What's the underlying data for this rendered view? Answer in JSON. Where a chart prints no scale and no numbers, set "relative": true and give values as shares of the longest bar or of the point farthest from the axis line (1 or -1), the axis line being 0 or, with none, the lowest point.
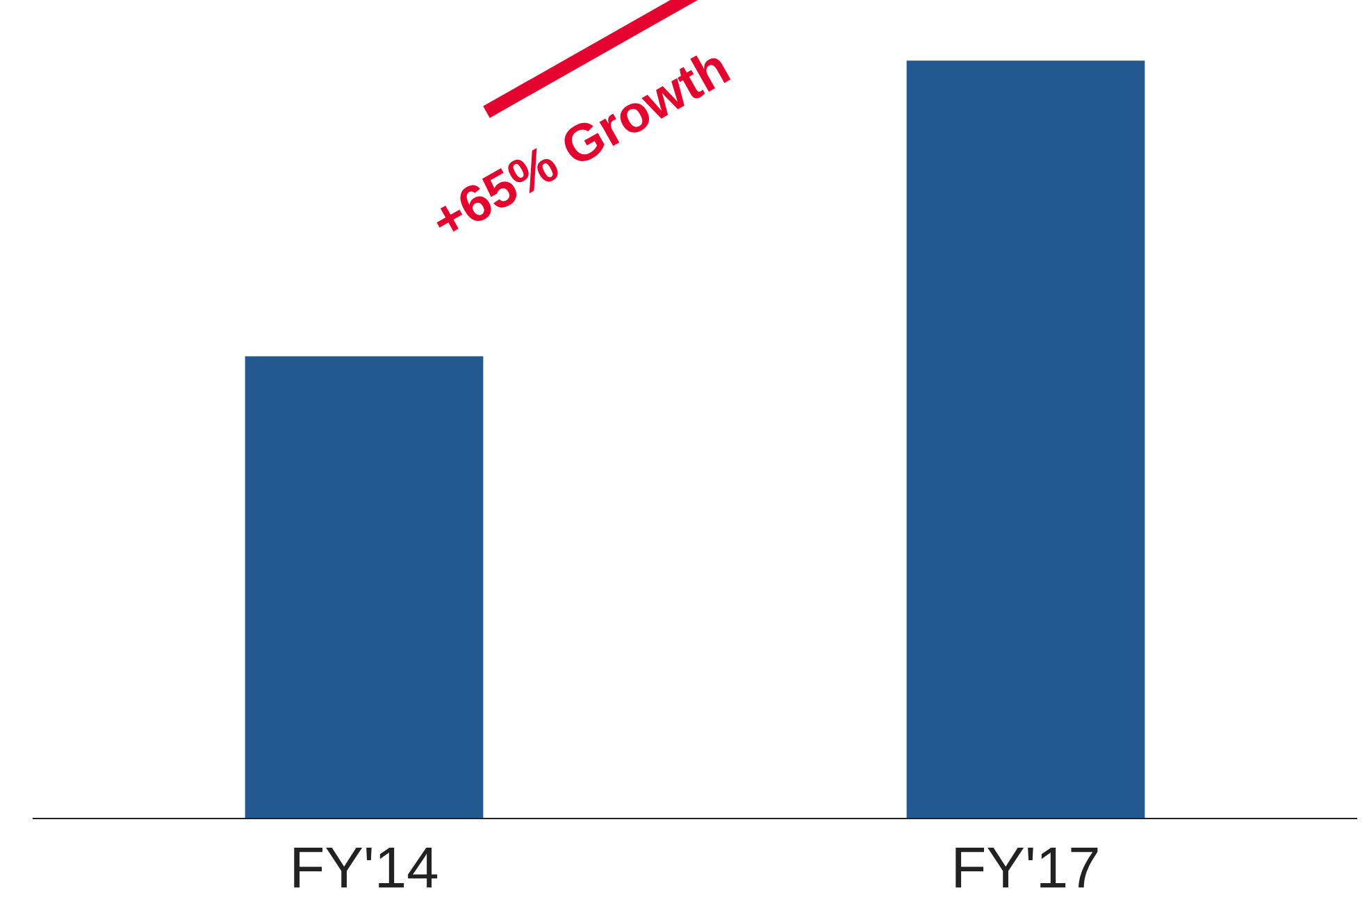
{
  "chart_data": {
    "type": "bar",
    "relative": true,
    "categories": [
      "FY'14",
      "FY'17"
    ],
    "values": [
      0.61,
      1
    ],
    "color": "#235891",
    "annotations": [
      "+65% Growth"
    ],
    "grid": false,
    "legend": false
  }
}
